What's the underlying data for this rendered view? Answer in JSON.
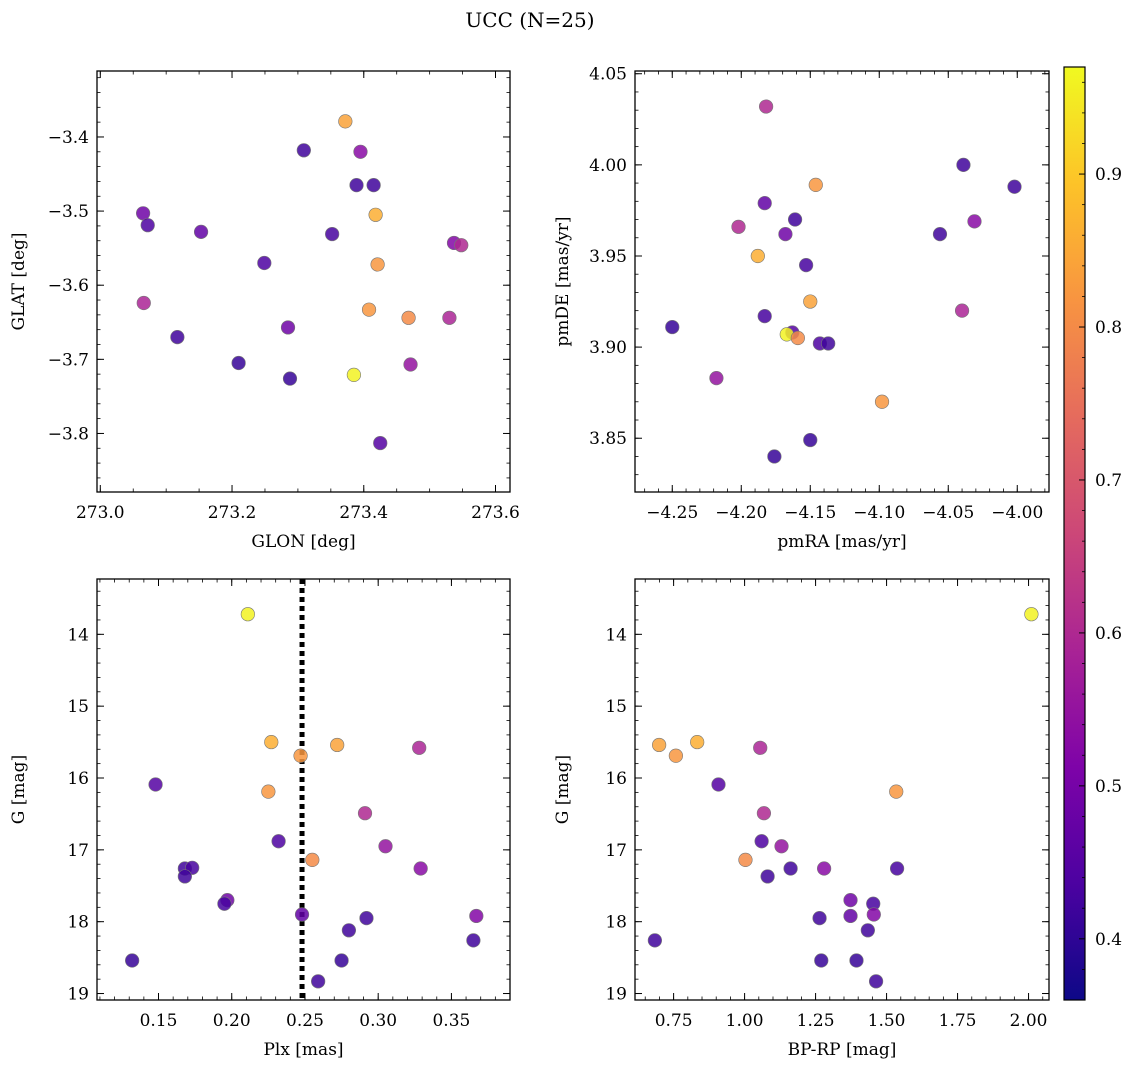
{
  "figure": {
    "title": "UCC (N=25)"
  },
  "colorbar": {
    "range": [
      0.36,
      0.97
    ],
    "ticks": [
      0.4,
      0.5,
      0.6,
      0.7,
      0.8,
      0.9
    ],
    "tick_labels": [
      "0.4",
      "0.5",
      "0.6",
      "0.7",
      "0.8",
      "0.9"
    ],
    "colormap": "plasma"
  },
  "chart_data": [
    {
      "type": "scatter",
      "xlabel": "GLON [deg]",
      "ylabel": "GLAT [deg]",
      "xlim": [
        272.995,
        273.622
      ],
      "ylim": [
        -3.879,
        -3.311
      ],
      "x_ticks": [
        273.0,
        273.2,
        273.4,
        273.6
      ],
      "x_tick_labels": [
        "273.0",
        "273.2",
        "273.4",
        "273.6"
      ],
      "y_ticks": [
        -3.4,
        -3.5,
        -3.6,
        -3.7,
        -3.8
      ],
      "y_tick_labels": [
        "−3.4",
        "−3.5",
        "−3.6",
        "−3.7",
        "−3.8"
      ],
      "points": [
        {
          "x": 273.372,
          "y": -3.379,
          "c": 0.84
        },
        {
          "x": 273.309,
          "y": -3.418,
          "c": 0.42
        },
        {
          "x": 273.395,
          "y": -3.42,
          "c": 0.53
        },
        {
          "x": 273.389,
          "y": -3.465,
          "c": 0.42
        },
        {
          "x": 273.415,
          "y": -3.465,
          "c": 0.42
        },
        {
          "x": 273.418,
          "y": -3.505,
          "c": 0.86
        },
        {
          "x": 273.065,
          "y": -3.503,
          "c": 0.49
        },
        {
          "x": 273.072,
          "y": -3.519,
          "c": 0.44
        },
        {
          "x": 273.153,
          "y": -3.528,
          "c": 0.47
        },
        {
          "x": 273.352,
          "y": -3.531,
          "c": 0.43
        },
        {
          "x": 273.537,
          "y": -3.543,
          "c": 0.52
        },
        {
          "x": 273.548,
          "y": -3.546,
          "c": 0.6
        },
        {
          "x": 273.249,
          "y": -3.57,
          "c": 0.44
        },
        {
          "x": 273.421,
          "y": -3.572,
          "c": 0.82
        },
        {
          "x": 273.066,
          "y": -3.624,
          "c": 0.59
        },
        {
          "x": 273.408,
          "y": -3.633,
          "c": 0.82
        },
        {
          "x": 273.468,
          "y": -3.644,
          "c": 0.8
        },
        {
          "x": 273.53,
          "y": -3.644,
          "c": 0.59
        },
        {
          "x": 273.285,
          "y": -3.657,
          "c": 0.49
        },
        {
          "x": 273.117,
          "y": -3.67,
          "c": 0.42
        },
        {
          "x": 273.21,
          "y": -3.705,
          "c": 0.41
        },
        {
          "x": 273.471,
          "y": -3.707,
          "c": 0.55
        },
        {
          "x": 273.385,
          "y": -3.721,
          "c": 0.96
        },
        {
          "x": 273.288,
          "y": -3.726,
          "c": 0.41
        },
        {
          "x": 273.425,
          "y": -3.813,
          "c": 0.45
        }
      ]
    },
    {
      "type": "scatter",
      "xlabel": "pmRA [mas/yr]",
      "ylabel": "pmDE [mas/yr]",
      "xlim": [
        -4.277,
        -3.977
      ],
      "ylim": [
        3.8205,
        4.0515
      ],
      "x_ticks": [
        -4.25,
        -4.2,
        -4.15,
        -4.1,
        -4.05,
        -4.0
      ],
      "x_tick_labels": [
        "−4.25",
        "−4.20",
        "−4.15",
        "−4.10",
        "−4.05",
        "−4.00"
      ],
      "y_ticks": [
        3.85,
        3.9,
        3.95,
        4.0,
        4.05
      ],
      "y_tick_labels": [
        "3.85",
        "3.90",
        "3.95",
        "4.00",
        "4.05"
      ],
      "points": [
        {
          "x": -4.182,
          "y": 4.032,
          "c": 0.6
        },
        {
          "x": -4.039,
          "y": 4.0,
          "c": 0.42
        },
        {
          "x": -4.146,
          "y": 3.989,
          "c": 0.82
        },
        {
          "x": -4.002,
          "y": 3.988,
          "c": 0.42
        },
        {
          "x": -4.183,
          "y": 3.979,
          "c": 0.47
        },
        {
          "x": -4.161,
          "y": 3.97,
          "c": 0.42
        },
        {
          "x": -4.031,
          "y": 3.969,
          "c": 0.53
        },
        {
          "x": -4.202,
          "y": 3.966,
          "c": 0.6
        },
        {
          "x": -4.168,
          "y": 3.962,
          "c": 0.49
        },
        {
          "x": -4.056,
          "y": 3.962,
          "c": 0.42
        },
        {
          "x": -4.188,
          "y": 3.95,
          "c": 0.86
        },
        {
          "x": -4.153,
          "y": 3.945,
          "c": 0.43
        },
        {
          "x": -4.15,
          "y": 3.925,
          "c": 0.84
        },
        {
          "x": -4.04,
          "y": 3.92,
          "c": 0.59
        },
        {
          "x": -4.183,
          "y": 3.917,
          "c": 0.43
        },
        {
          "x": -4.25,
          "y": 3.911,
          "c": 0.41
        },
        {
          "x": -4.163,
          "y": 3.908,
          "c": 0.45
        },
        {
          "x": -4.167,
          "y": 3.907,
          "c": 0.96
        },
        {
          "x": -4.159,
          "y": 3.905,
          "c": 0.8
        },
        {
          "x": -4.143,
          "y": 3.902,
          "c": 0.44
        },
        {
          "x": -4.137,
          "y": 3.902,
          "c": 0.42
        },
        {
          "x": -4.218,
          "y": 3.883,
          "c": 0.55
        },
        {
          "x": -4.098,
          "y": 3.87,
          "c": 0.82
        },
        {
          "x": -4.15,
          "y": 3.849,
          "c": 0.41
        },
        {
          "x": -4.176,
          "y": 3.84,
          "c": 0.41
        }
      ]
    },
    {
      "type": "scatter",
      "xlabel": "Plx [mas]",
      "ylabel": "G [mag]",
      "xlim": [
        0.108,
        0.39
      ],
      "ylim": [
        19.09,
        13.23
      ],
      "y_inverted": true,
      "x_ticks": [
        0.15,
        0.2,
        0.25,
        0.3,
        0.35
      ],
      "x_tick_labels": [
        "0.15",
        "0.20",
        "0.25",
        "0.30",
        "0.35"
      ],
      "y_ticks": [
        14,
        15,
        16,
        17,
        18,
        19
      ],
      "y_tick_labels": [
        "14",
        "15",
        "16",
        "17",
        "18",
        "19"
      ],
      "vline": {
        "x": 0.248,
        "style": "dotted"
      },
      "points": [
        {
          "x": 0.211,
          "y": 13.72,
          "c": 0.96
        },
        {
          "x": 0.227,
          "y": 15.5,
          "c": 0.86
        },
        {
          "x": 0.272,
          "y": 15.54,
          "c": 0.84
        },
        {
          "x": 0.328,
          "y": 15.58,
          "c": 0.59
        },
        {
          "x": 0.247,
          "y": 15.69,
          "c": 0.82
        },
        {
          "x": 0.148,
          "y": 16.09,
          "c": 0.45
        },
        {
          "x": 0.225,
          "y": 16.19,
          "c": 0.82
        },
        {
          "x": 0.291,
          "y": 16.49,
          "c": 0.6
        },
        {
          "x": 0.232,
          "y": 16.88,
          "c": 0.44
        },
        {
          "x": 0.305,
          "y": 16.95,
          "c": 0.55
        },
        {
          "x": 0.255,
          "y": 17.14,
          "c": 0.8
        },
        {
          "x": 0.168,
          "y": 17.26,
          "c": 0.42
        },
        {
          "x": 0.173,
          "y": 17.25,
          "c": 0.43
        },
        {
          "x": 0.329,
          "y": 17.26,
          "c": 0.53
        },
        {
          "x": 0.168,
          "y": 17.37,
          "c": 0.42
        },
        {
          "x": 0.197,
          "y": 17.7,
          "c": 0.49
        },
        {
          "x": 0.195,
          "y": 17.75,
          "c": 0.43
        },
        {
          "x": 0.248,
          "y": 17.9,
          "c": 0.47
        },
        {
          "x": 0.367,
          "y": 17.92,
          "c": 0.52
        },
        {
          "x": 0.292,
          "y": 17.95,
          "c": 0.42
        },
        {
          "x": 0.28,
          "y": 18.12,
          "c": 0.42
        },
        {
          "x": 0.365,
          "y": 18.26,
          "c": 0.42
        },
        {
          "x": 0.132,
          "y": 18.54,
          "c": 0.41
        },
        {
          "x": 0.275,
          "y": 18.54,
          "c": 0.41
        },
        {
          "x": 0.259,
          "y": 18.83,
          "c": 0.42
        }
      ]
    },
    {
      "type": "scatter",
      "xlabel": "BP-RP [mag]",
      "ylabel": "G [mag]",
      "xlim": [
        0.614,
        2.072
      ],
      "ylim": [
        19.09,
        13.23
      ],
      "y_inverted": true,
      "x_ticks": [
        0.75,
        1.0,
        1.25,
        1.5,
        1.75,
        2.0
      ],
      "x_tick_labels": [
        "0.75",
        "1.00",
        "1.25",
        "1.50",
        "1.75",
        "2.00"
      ],
      "y_ticks": [
        14,
        15,
        16,
        17,
        18,
        19
      ],
      "y_tick_labels": [
        "14",
        "15",
        "16",
        "17",
        "18",
        "19"
      ],
      "points": [
        {
          "x": 2.01,
          "y": 13.72,
          "c": 0.96
        },
        {
          "x": 0.699,
          "y": 15.54,
          "c": 0.84
        },
        {
          "x": 0.833,
          "y": 15.5,
          "c": 0.86
        },
        {
          "x": 1.055,
          "y": 15.58,
          "c": 0.59
        },
        {
          "x": 0.758,
          "y": 15.69,
          "c": 0.82
        },
        {
          "x": 0.908,
          "y": 16.09,
          "c": 0.45
        },
        {
          "x": 1.534,
          "y": 16.19,
          "c": 0.82
        },
        {
          "x": 1.068,
          "y": 16.49,
          "c": 0.6
        },
        {
          "x": 1.06,
          "y": 16.88,
          "c": 0.44
        },
        {
          "x": 1.13,
          "y": 16.95,
          "c": 0.55
        },
        {
          "x": 1.003,
          "y": 17.14,
          "c": 0.8
        },
        {
          "x": 1.162,
          "y": 17.26,
          "c": 0.42
        },
        {
          "x": 1.28,
          "y": 17.26,
          "c": 0.53
        },
        {
          "x": 1.537,
          "y": 17.26,
          "c": 0.43
        },
        {
          "x": 1.081,
          "y": 17.37,
          "c": 0.42
        },
        {
          "x": 1.373,
          "y": 17.7,
          "c": 0.49
        },
        {
          "x": 1.453,
          "y": 17.75,
          "c": 0.43
        },
        {
          "x": 1.373,
          "y": 17.92,
          "c": 0.47
        },
        {
          "x": 1.455,
          "y": 17.9,
          "c": 0.52
        },
        {
          "x": 1.264,
          "y": 17.95,
          "c": 0.42
        },
        {
          "x": 1.434,
          "y": 18.12,
          "c": 0.42
        },
        {
          "x": 0.684,
          "y": 18.26,
          "c": 0.42
        },
        {
          "x": 1.27,
          "y": 18.54,
          "c": 0.41
        },
        {
          "x": 1.394,
          "y": 18.54,
          "c": 0.41
        },
        {
          "x": 1.463,
          "y": 18.83,
          "c": 0.42
        }
      ]
    }
  ]
}
